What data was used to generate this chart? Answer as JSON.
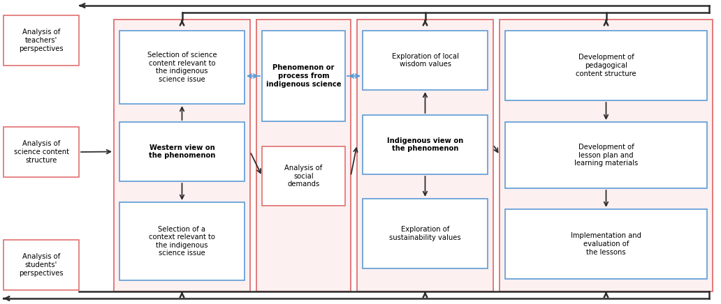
{
  "bg_color": "#ffffff",
  "figure_size": [
    10.32,
    4.36
  ],
  "dpi": 100,
  "left_boxes": [
    {
      "label": "teachers",
      "text": "Analysis of\nteachers'\nperspectives"
    },
    {
      "label": "science",
      "text": "Analysis of\nscience content\nstructure"
    },
    {
      "label": "students",
      "text": "Analysis of\nstudents'\nperspectives"
    }
  ],
  "group1_inner_boxes": [
    {
      "label": "sel_sci",
      "text": "Selection of science\ncontent relevant to\nthe indigenous\nscience issue",
      "bold": false
    },
    {
      "label": "western",
      "text": "Western view on\nthe phenomenon",
      "bold": true
    },
    {
      "label": "sel_ctx",
      "text": "Selection of a\ncontext relevant to\nthe indigenous\nscience issue",
      "bold": false
    }
  ],
  "group2_boxes": [
    {
      "label": "phenomenon",
      "text": "Phenomenon or\nprocess from\nindigenous science",
      "bold": true,
      "edge": "#5b9bd5"
    },
    {
      "label": "social",
      "text": "Analysis of\nsocial\ndemands",
      "bold": false,
      "edge": "#e07070"
    }
  ],
  "group3_inner_boxes": [
    {
      "label": "expl_local",
      "text": "Exploration of local\nwisdom values",
      "bold": false
    },
    {
      "label": "indigenous",
      "text": "Indigenous view on\nthe phenomenon",
      "bold": true
    },
    {
      "label": "expl_sust",
      "text": "Exploration of\nsustainability values",
      "bold": false
    }
  ],
  "group4_inner_boxes": [
    {
      "label": "dev_ped",
      "text": "Development of\npedagogical\ncontent structure",
      "bold": false
    },
    {
      "label": "dev_lesson",
      "text": "Development of\nlesson plan and\nlearning materials",
      "bold": false
    },
    {
      "label": "impl",
      "text": "Implementation and\nevaluation of\nthe lessons",
      "bold": false
    }
  ],
  "pink_edge": "#e07070",
  "blue_edge": "#5b9bd5",
  "pink_fill": "#fdf0f0",
  "white_fill": "#ffffff",
  "arrow_dark": "#2d2d2d",
  "arrow_blue": "#5b9bd5",
  "fontsize": 7.2
}
